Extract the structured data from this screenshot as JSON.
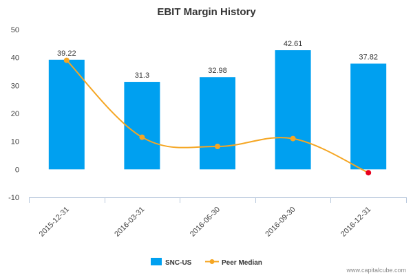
{
  "chart_data": {
    "type": "bar",
    "title": "EBIT Margin History",
    "xlabel": "",
    "ylabel": "",
    "categories": [
      "2015-12-31",
      "2016-03-31",
      "2016-06-30",
      "2016-09-30",
      "2016-12-31"
    ],
    "ylim": [
      -10,
      50
    ],
    "yticks": [
      -10,
      0,
      10,
      20,
      30,
      40,
      50
    ],
    "grid": false,
    "legend_position": "bottom",
    "series": [
      {
        "name": "SNC-US",
        "type": "bar",
        "color": "#00a0f0",
        "values": [
          39.22,
          31.3,
          32.98,
          42.61,
          37.82
        ],
        "labels": [
          "39.22",
          "31.3",
          "32.98",
          "42.61",
          "37.82"
        ]
      },
      {
        "name": "Peer Median",
        "type": "line",
        "color": "#f5a623",
        "last_point_color": "#e8001c",
        "values": [
          39.0,
          11.5,
          8.2,
          11.0,
          -1.2
        ]
      }
    ]
  },
  "credit": "www.capitalcube.com"
}
